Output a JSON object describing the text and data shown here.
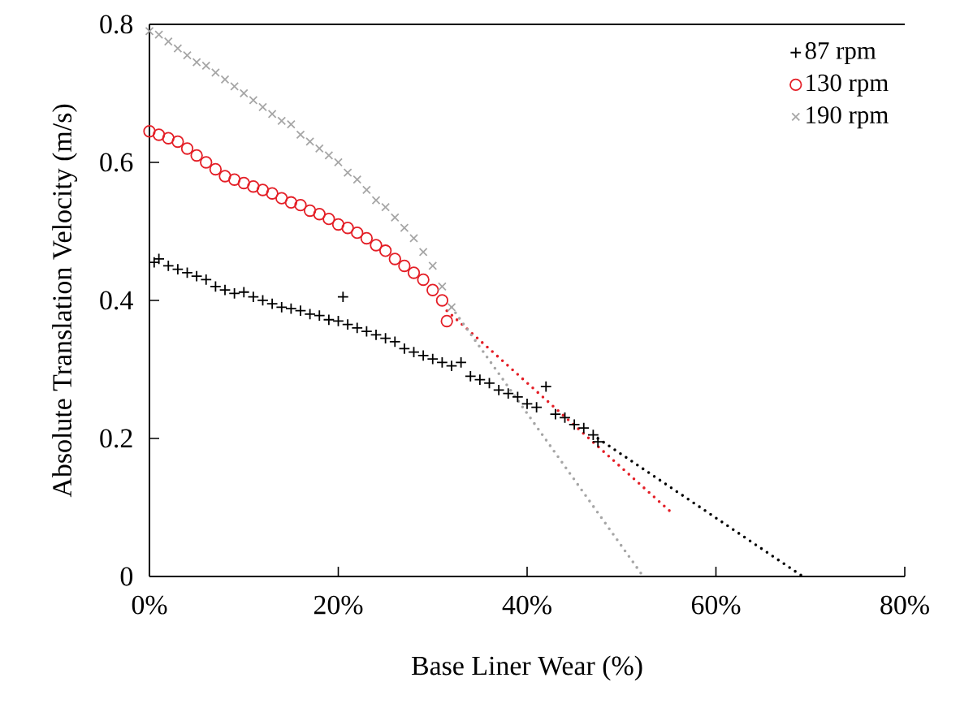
{
  "chart_data": {
    "type": "scatter",
    "xlabel": "Base Liner Wear (%)",
    "ylabel": "Absolute Translation Velocity (m/s)",
    "xlim": [
      0,
      80
    ],
    "ylim": [
      0,
      0.8
    ],
    "xticks": [
      {
        "value": 0,
        "label": "0%"
      },
      {
        "value": 20,
        "label": "20%"
      },
      {
        "value": 40,
        "label": "40%"
      },
      {
        "value": 60,
        "label": "60%"
      },
      {
        "value": 80,
        "label": "80%"
      }
    ],
    "yticks": [
      0,
      0.2,
      0.4,
      0.6,
      0.8
    ],
    "grid": false,
    "legend": "top right",
    "series": [
      {
        "name": "87 rpm",
        "color": "#000000",
        "marker": "plus",
        "x": [
          0.5,
          1,
          2,
          3,
          4,
          5,
          6,
          7,
          8,
          9,
          10,
          11,
          12,
          13,
          14,
          15,
          16,
          17,
          18,
          19,
          20,
          20.5,
          21,
          22,
          23,
          24,
          25,
          26,
          27,
          28,
          29,
          30,
          31,
          32,
          33,
          34,
          35,
          36,
          37,
          38,
          39,
          40,
          41,
          42,
          43,
          44,
          45,
          46,
          47,
          47.5
        ],
        "values": [
          0.455,
          0.46,
          0.45,
          0.445,
          0.44,
          0.435,
          0.43,
          0.42,
          0.415,
          0.41,
          0.412,
          0.405,
          0.4,
          0.395,
          0.39,
          0.388,
          0.385,
          0.38,
          0.378,
          0.372,
          0.37,
          0.405,
          0.365,
          0.36,
          0.355,
          0.35,
          0.345,
          0.34,
          0.33,
          0.325,
          0.32,
          0.315,
          0.31,
          0.305,
          0.31,
          0.29,
          0.285,
          0.28,
          0.27,
          0.265,
          0.26,
          0.25,
          0.245,
          0.275,
          0.235,
          0.23,
          0.22,
          0.215,
          0.205,
          0.195
        ]
      },
      {
        "name": "130 rpm",
        "color": "#e41e26",
        "marker": "circle",
        "x": [
          0,
          1,
          2,
          3,
          4,
          5,
          6,
          7,
          8,
          9,
          10,
          11,
          12,
          13,
          14,
          15,
          16,
          17,
          18,
          19,
          20,
          21,
          22,
          23,
          24,
          25,
          26,
          27,
          28,
          29,
          30,
          31,
          31.5
        ],
        "values": [
          0.645,
          0.64,
          0.635,
          0.63,
          0.62,
          0.61,
          0.6,
          0.59,
          0.58,
          0.575,
          0.57,
          0.565,
          0.56,
          0.555,
          0.548,
          0.542,
          0.538,
          0.53,
          0.525,
          0.518,
          0.51,
          0.505,
          0.498,
          0.49,
          0.48,
          0.472,
          0.46,
          0.45,
          0.44,
          0.43,
          0.415,
          0.4,
          0.37
        ]
      },
      {
        "name": "190 rpm",
        "color": "#a6a6a6",
        "marker": "cross",
        "x": [
          0,
          1,
          2,
          3,
          4,
          5,
          6,
          7,
          8,
          9,
          10,
          11,
          12,
          13,
          14,
          15,
          16,
          17,
          18,
          19,
          20,
          21,
          22,
          23,
          24,
          25,
          26,
          27,
          28,
          29,
          30,
          31,
          32
        ],
        "values": [
          0.79,
          0.785,
          0.775,
          0.765,
          0.755,
          0.745,
          0.74,
          0.73,
          0.72,
          0.71,
          0.7,
          0.69,
          0.68,
          0.67,
          0.66,
          0.655,
          0.64,
          0.63,
          0.62,
          0.61,
          0.6,
          0.585,
          0.575,
          0.56,
          0.545,
          0.535,
          0.52,
          0.505,
          0.49,
          0.47,
          0.45,
          0.42,
          0.39
        ]
      },
      {
        "type": "line",
        "color": "#000000",
        "line_style": "dotted",
        "marker": "none",
        "x": [
          47.5,
          69.2
        ],
        "values": [
          0.2,
          0
        ]
      },
      {
        "type": "line",
        "color": "#e41e26",
        "line_style": "dotted",
        "marker": "none",
        "x": [
          31.5,
          55.5
        ],
        "values": [
          0.385,
          0.09
        ]
      },
      {
        "type": "line",
        "color": "#a6a6a6",
        "line_style": "dotted",
        "marker": "none",
        "x": [
          32,
          52.3
        ],
        "values": [
          0.39,
          0
        ]
      }
    ]
  }
}
